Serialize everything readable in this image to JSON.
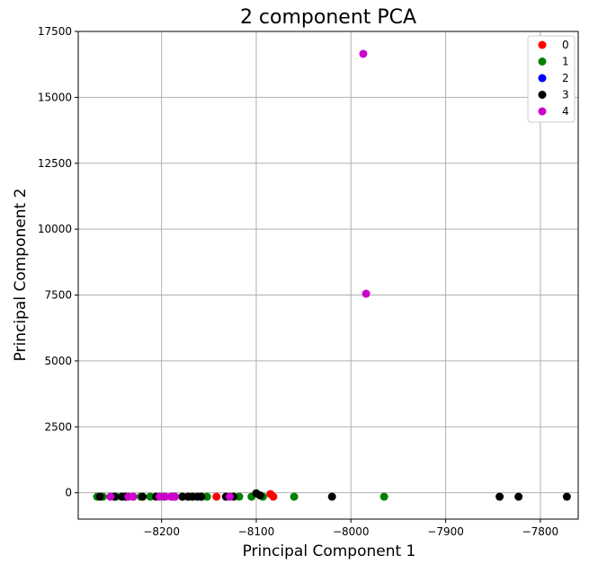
{
  "chart_data": {
    "type": "scatter",
    "title": "2 component PCA",
    "xlabel": "Principal Component 1",
    "ylabel": "Principal Component 2",
    "xlim": [
      -8288,
      -7760
    ],
    "ylim": [
      -1000,
      17500
    ],
    "xticks": [
      -8200,
      -8100,
      -8000,
      -7900,
      -7800
    ],
    "yticks": [
      0,
      2500,
      5000,
      7500,
      10000,
      12500,
      15000,
      17500
    ],
    "grid": true,
    "legend_position": "top-right",
    "series": [
      {
        "name": "0",
        "color": "#ff0000",
        "points": [
          [
            -8142,
            -150
          ],
          [
            -8085,
            -50
          ],
          [
            -8082,
            -150
          ],
          [
            -8230,
            -150
          ],
          [
            -8172,
            -150
          ]
        ]
      },
      {
        "name": "1",
        "color": "#008000",
        "points": [
          [
            -8268,
            -150
          ],
          [
            -8262,
            -150
          ],
          [
            -8248,
            -150
          ],
          [
            -8238,
            -150
          ],
          [
            -8222,
            -150
          ],
          [
            -8212,
            -150
          ],
          [
            -8198,
            -150
          ],
          [
            -8188,
            -150
          ],
          [
            -8178,
            -150
          ],
          [
            -8168,
            -150
          ],
          [
            -8158,
            -150
          ],
          [
            -8152,
            -150
          ],
          [
            -8128,
            -150
          ],
          [
            -8118,
            -150
          ],
          [
            -8105,
            -150
          ],
          [
            -8093,
            -150
          ],
          [
            -8060,
            -150
          ],
          [
            -7965,
            -150
          ]
        ]
      },
      {
        "name": "2",
        "color": "#0000ff",
        "points": []
      },
      {
        "name": "3",
        "color": "#000000",
        "points": [
          [
            -8265,
            -150
          ],
          [
            -8250,
            -150
          ],
          [
            -8242,
            -150
          ],
          [
            -8238,
            -150
          ],
          [
            -8220,
            -150
          ],
          [
            -8206,
            -150
          ],
          [
            -8186,
            -150
          ],
          [
            -8178,
            -150
          ],
          [
            -8172,
            -150
          ],
          [
            -8167,
            -150
          ],
          [
            -8162,
            -150
          ],
          [
            -8158,
            -150
          ],
          [
            -8132,
            -150
          ],
          [
            -8124,
            -150
          ],
          [
            -8100,
            -20
          ],
          [
            -8096,
            -100
          ],
          [
            -8020,
            -150
          ],
          [
            -7843,
            -150
          ],
          [
            -7823,
            -150
          ],
          [
            -7772,
            -150
          ]
        ]
      },
      {
        "name": "4",
        "color": "#cc00cc",
        "points": [
          [
            -7987,
            16650
          ],
          [
            -7984,
            7550
          ],
          [
            -8254,
            -150
          ],
          [
            -8235,
            -150
          ],
          [
            -8230,
            -150
          ],
          [
            -8202,
            -150
          ],
          [
            -8196,
            -150
          ],
          [
            -8190,
            -150
          ],
          [
            -8186,
            -150
          ],
          [
            -8128,
            -150
          ]
        ]
      }
    ]
  }
}
